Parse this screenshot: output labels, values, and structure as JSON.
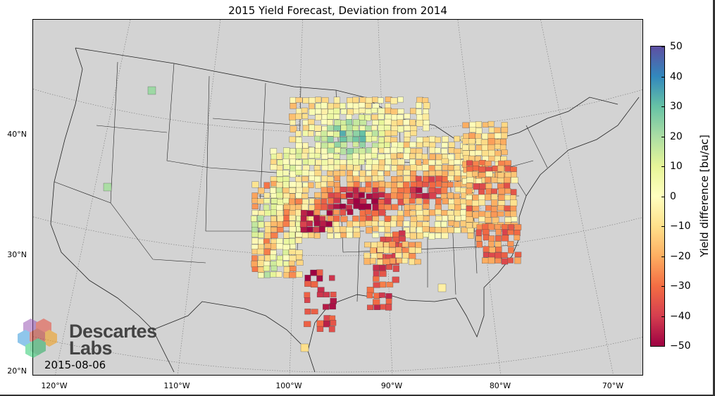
{
  "title": "2015 Yield Forecast, Deviation from 2014",
  "date": "2015-08-06",
  "logo": {
    "line1": "Descartes",
    "line2": "Labs"
  },
  "lat_labels": [
    "40°N",
    "30°N",
    "20°N"
  ],
  "lon_labels": [
    "120°W",
    "110°W",
    "100°W",
    "90°W",
    "80°W",
    "70°W"
  ],
  "colorbar": {
    "label": "Yield difference [bu/ac]",
    "ticks": [
      "50",
      "40",
      "30",
      "20",
      "10",
      "0",
      "−10",
      "−20",
      "−30",
      "−40",
      "−50"
    ],
    "range": [
      -50,
      50
    ],
    "colormap": [
      "#9e0142",
      "#d53e4f",
      "#f46d43",
      "#fdae61",
      "#fee08b",
      "#ffffbf",
      "#e6f598",
      "#abdda4",
      "#66c2a5",
      "#3288bd",
      "#5e4fa2"
    ]
  },
  "colors": {
    "land": "#d3d3d3"
  }
}
